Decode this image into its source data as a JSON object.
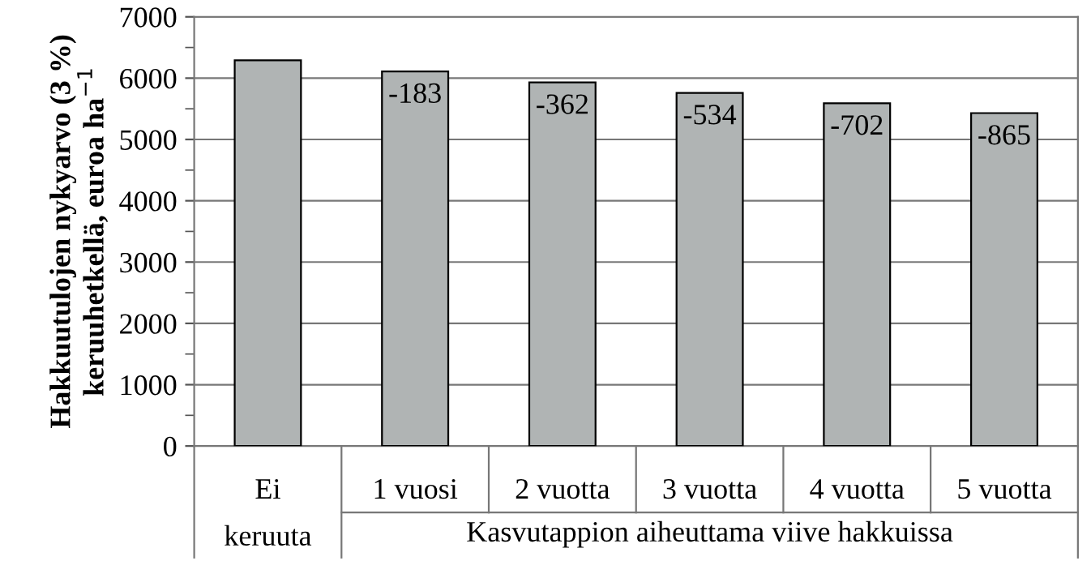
{
  "chart_data": {
    "type": "bar",
    "ylabel": "Hakkuutulojen nykyarvo (3 %)\nkeruuhetkellä, euroa ha$^{−1}$",
    "categories": [
      "Ei\nkeruuta",
      "1 vuosi",
      "2 vuotta",
      "3 vuotta",
      "4 vuotta",
      "5 vuotta"
    ],
    "values": [
      6290,
      6110,
      5930,
      5760,
      5590,
      5430
    ],
    "color": "#b0b4b4",
    "ylim": [
      0,
      7000
    ],
    "yticks": [
      0,
      {
        "value": 500,
        "label": null
      },
      1000,
      {
        "value": 1500,
        "label": null
      },
      2000,
      {
        "value": 2500,
        "label": null
      },
      3000,
      {
        "value": 3500,
        "label": null
      },
      4000,
      {
        "value": 4500,
        "label": null
      },
      5000,
      {
        "value": 5500,
        "label": null
      },
      6000,
      {
        "value": 6500,
        "label": null
      },
      7000
    ],
    "grid": "y",
    "annotations": [
      "Kasvutappion aiheuttama viive hakkuissa",
      {
        "text": "-183",
        "x": "1 vuosi",
        "y": 6110
      },
      {
        "text": "-362",
        "x": "2 vuotta",
        "y": 5930
      },
      {
        "text": "-534",
        "x": "3 vuotta",
        "y": 5760
      },
      {
        "text": "-702",
        "x": "4 vuotta",
        "y": 5590
      },
      {
        "text": "-865",
        "x": "5 vuotta",
        "y": 5430
      }
    ]
  }
}
